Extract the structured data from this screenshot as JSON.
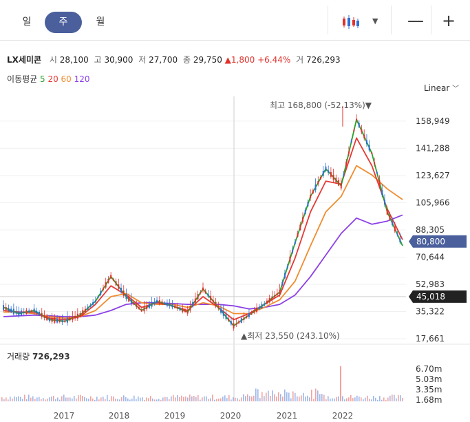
{
  "periods": [
    {
      "label": "일",
      "active": false
    },
    {
      "label": "주",
      "active": true
    },
    {
      "label": "월",
      "active": false
    }
  ],
  "toolbar": {
    "chart_type_icon": "candlestick-icon",
    "dropdown_icon": "chevron-down-icon",
    "zoom_out": "—",
    "zoom_in": "+"
  },
  "stock": {
    "name": "LX세미콘",
    "open_label": "시",
    "open": "28,100",
    "high_label": "고",
    "high": "30,900",
    "low_label": "저",
    "low": "27,700",
    "close_label": "종",
    "close": "29,750",
    "change_arrow": "▲",
    "change": "1,800",
    "change_pct": "+6.44%",
    "volume_label": "거",
    "volume": "726,293"
  },
  "ma_legend": {
    "label": "이동평균",
    "periods": [
      "5",
      "20",
      "60",
      "120"
    ],
    "colors": [
      "#2ca02c",
      "#e53935",
      "#f08c2e",
      "#8b3fe6"
    ]
  },
  "scale_mode": "Linear",
  "price_axis": [
    "158,949",
    "141,288",
    "123,627",
    "105,966",
    "88,305",
    "70,644",
    "52,983",
    "35,322",
    "17,661"
  ],
  "current_price_tag": "80,800",
  "crosshair_price_tag": "45,018",
  "high_annotation": "최고 168,800 (-52.13%)▼",
  "low_annotation": "▲최저 23,550 (243.10%)",
  "volume": {
    "label": "거래량",
    "value": "726,293",
    "axis": [
      "6.70m",
      "5.03m",
      "3.35m",
      "1.68m"
    ]
  },
  "time_axis": [
    "2017",
    "2018",
    "2019",
    "2020",
    "2021",
    "2022"
  ],
  "colors": {
    "accent": "#4a5f9c",
    "up": "#e0312b",
    "down": "#2c6fd6",
    "current_tag": "#4a5f9c",
    "crosshair_tag": "#222222"
  },
  "chart_data": {
    "type": "line",
    "title": "LX세미콘",
    "x": [
      "2016-06",
      "2016-09",
      "2016-12",
      "2017-03",
      "2017-06",
      "2017-09",
      "2017-12",
      "2018-03",
      "2018-06",
      "2018-09",
      "2018-12",
      "2019-03",
      "2019-06",
      "2019-09",
      "2019-12",
      "2020-03",
      "2020-06",
      "2020-09",
      "2020-12",
      "2021-03",
      "2021-06",
      "2021-09",
      "2021-12",
      "2022-03",
      "2022-06",
      "2022-09",
      "2022-12"
    ],
    "series": [
      {
        "name": "5",
        "color": "#2ca02c",
        "values": [
          38000,
          34000,
          36000,
          30000,
          29000,
          33000,
          42000,
          58000,
          45000,
          36000,
          42000,
          39000,
          35000,
          50000,
          38000,
          26000,
          33000,
          40000,
          48000,
          80000,
          110000,
          128000,
          117000,
          160000,
          138000,
          100000,
          78000
        ]
      },
      {
        "name": "20",
        "color": "#e53935",
        "values": [
          36000,
          35000,
          35000,
          31000,
          30000,
          32000,
          40000,
          52000,
          46000,
          38000,
          41000,
          39000,
          36000,
          45000,
          38000,
          30000,
          34000,
          40000,
          46000,
          70000,
          100000,
          120000,
          118000,
          148000,
          130000,
          102000,
          82000
        ]
      },
      {
        "name": "60",
        "color": "#f08c2e",
        "values": [
          35000,
          35000,
          34000,
          32000,
          31000,
          32000,
          36000,
          45000,
          47000,
          41000,
          40000,
          40000,
          38000,
          41000,
          39000,
          34000,
          34000,
          38000,
          43000,
          55000,
          78000,
          100000,
          110000,
          130000,
          124000,
          115000,
          108000
        ]
      },
      {
        "name": "120",
        "color": "#8b3fe6",
        "values": [
          32000,
          32500,
          33000,
          32500,
          32000,
          32000,
          33000,
          36000,
          40000,
          41000,
          41000,
          40500,
          40000,
          40000,
          40000,
          39000,
          37000,
          38000,
          40000,
          46000,
          58000,
          72000,
          86000,
          96000,
          92000,
          94000,
          98000
        ]
      }
    ],
    "ylim": [
      15000,
      175000
    ],
    "scale": "linear",
    "grid": true,
    "current_price": 80800,
    "crosshair_price": 45018,
    "high": 168800,
    "low": 23550,
    "volume_max": "6.70m"
  }
}
